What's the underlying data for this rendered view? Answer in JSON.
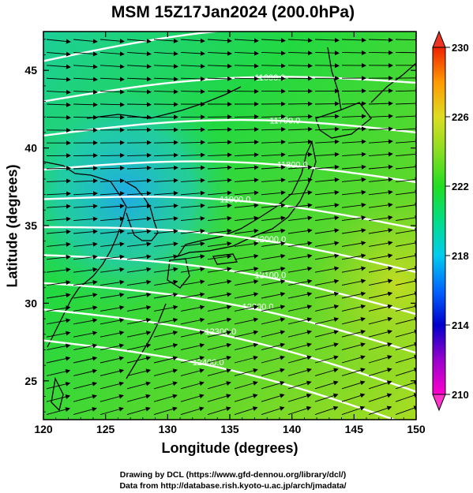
{
  "title": "MSM 15Z17Jan2024 (200.0hPa)",
  "x_axis": {
    "label": "Longitude (degrees)",
    "range": [
      120,
      150
    ],
    "ticks": [
      "120",
      "125",
      "130",
      "135",
      "140",
      "145",
      "150"
    ]
  },
  "y_axis": {
    "label": "Latitude  (degrees)",
    "range": [
      22.5,
      47.5
    ],
    "ticks": [
      "25",
      "30",
      "35",
      "40",
      "45"
    ]
  },
  "colorbar": {
    "range": [
      210,
      230
    ],
    "ticks": [
      "210",
      "214",
      "218",
      "222",
      "226",
      "230"
    ]
  },
  "contours": {
    "labels": [
      "11500.0",
      "11600.0",
      "11700.0",
      "11800.0",
      "11900.0",
      "12000.0",
      "12100.0",
      "12200.0",
      "12300.0",
      "12400.0"
    ]
  },
  "footer": {
    "line1": "Drawing by DCL (https://www.gfd-dennou.org/library/dcl/)",
    "line2": "Data from http://database.rish.kyoto-u.ac.jp/arch/jmadata/"
  },
  "colors": {
    "field_cold": "#00aaff",
    "field_mid": "#22dd22",
    "field_warm": "#99dd22",
    "contour": "#ffffff",
    "coast": "#000000"
  }
}
